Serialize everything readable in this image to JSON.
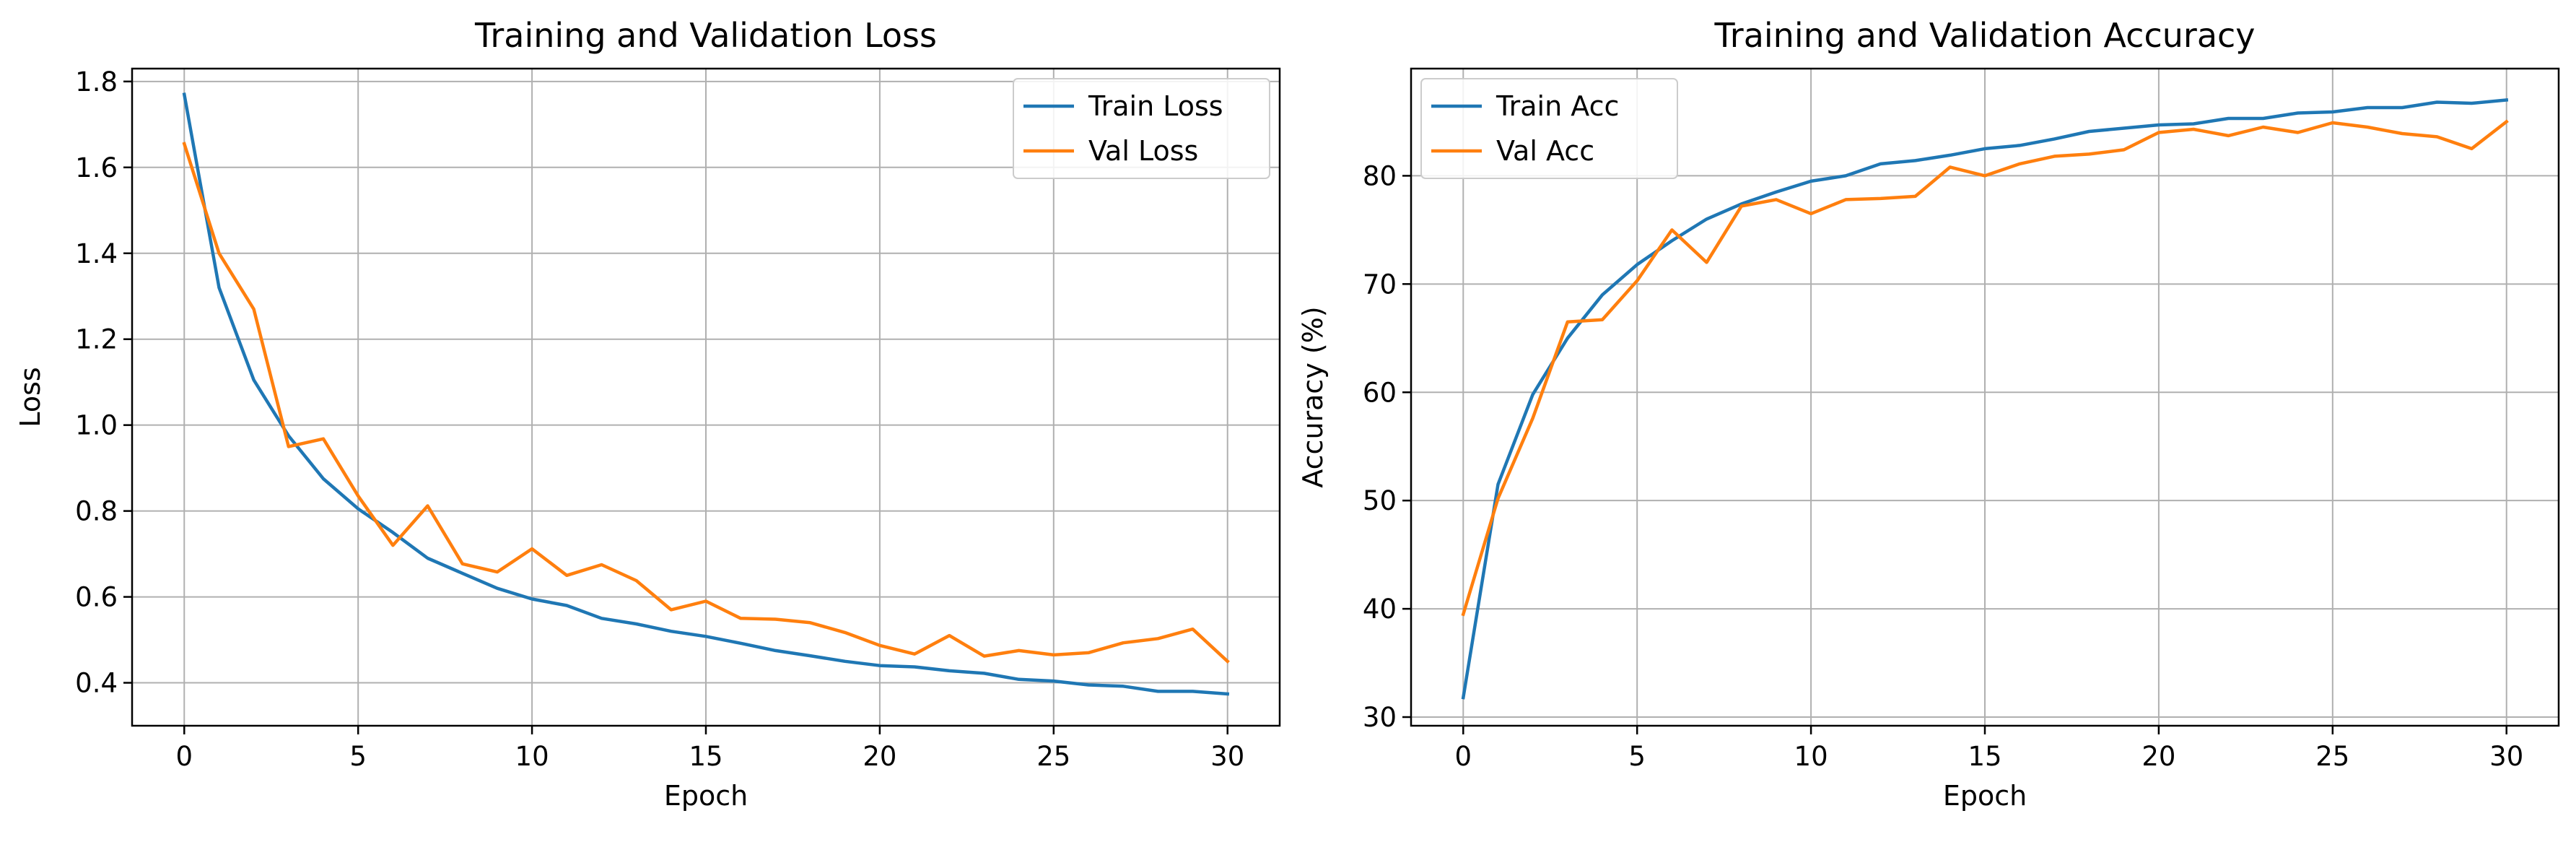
{
  "chart_data": [
    {
      "type": "line",
      "title": "Training and Validation Loss",
      "xlabel": "Epoch",
      "ylabel": "Loss",
      "xlim": [
        -1.5,
        31.5
      ],
      "ylim": [
        0.3,
        1.83
      ],
      "xticks": [
        0,
        5,
        10,
        15,
        20,
        25,
        30
      ],
      "yticks": [
        0.4,
        0.6,
        0.8,
        1.0,
        1.2,
        1.4,
        1.6,
        1.8
      ],
      "ytick_decimals": 1,
      "grid": true,
      "legend_position": "top-right",
      "x": [
        0,
        1,
        2,
        3,
        4,
        5,
        6,
        7,
        8,
        9,
        10,
        11,
        12,
        13,
        14,
        15,
        16,
        17,
        18,
        19,
        20,
        21,
        22,
        23,
        24,
        25,
        26,
        27,
        28,
        29,
        30
      ],
      "series": [
        {
          "name": "Train Loss",
          "color": "#1f77b4",
          "values": [
            1.77,
            1.32,
            1.105,
            0.975,
            0.875,
            0.805,
            0.75,
            0.69,
            0.655,
            0.62,
            0.595,
            0.58,
            0.55,
            0.537,
            0.52,
            0.508,
            0.492,
            0.475,
            0.463,
            0.45,
            0.44,
            0.437,
            0.428,
            0.422,
            0.408,
            0.404,
            0.395,
            0.392,
            0.38,
            0.38,
            0.374
          ]
        },
        {
          "name": "Val Loss",
          "color": "#ff7f0e",
          "values": [
            1.655,
            1.4,
            1.27,
            0.95,
            0.968,
            0.835,
            0.72,
            0.812,
            0.677,
            0.658,
            0.712,
            0.65,
            0.675,
            0.638,
            0.57,
            0.59,
            0.55,
            0.548,
            0.54,
            0.517,
            0.487,
            0.467,
            0.51,
            0.462,
            0.475,
            0.465,
            0.47,
            0.493,
            0.503,
            0.525,
            0.45
          ]
        }
      ]
    },
    {
      "type": "line",
      "title": "Training and Validation Accuracy",
      "xlabel": "Epoch",
      "ylabel": "Accuracy (%)",
      "xlim": [
        -1.5,
        31.5
      ],
      "ylim": [
        29.2,
        89.9
      ],
      "xticks": [
        0,
        5,
        10,
        15,
        20,
        25,
        30
      ],
      "yticks": [
        30,
        40,
        50,
        60,
        70,
        80
      ],
      "ytick_decimals": 0,
      "grid": true,
      "legend_position": "top-left",
      "x": [
        0,
        1,
        2,
        3,
        4,
        5,
        6,
        7,
        8,
        9,
        10,
        11,
        12,
        13,
        14,
        15,
        16,
        17,
        18,
        19,
        20,
        21,
        22,
        23,
        24,
        25,
        26,
        27,
        28,
        29,
        30
      ],
      "series": [
        {
          "name": "Train Acc",
          "color": "#1f77b4",
          "values": [
            31.8,
            51.5,
            59.8,
            65.0,
            69.0,
            71.8,
            74.0,
            76.0,
            77.4,
            78.5,
            79.5,
            80.0,
            81.1,
            81.4,
            81.9,
            82.5,
            82.8,
            83.4,
            84.1,
            84.4,
            84.7,
            84.8,
            85.3,
            85.3,
            85.8,
            85.9,
            86.3,
            86.3,
            86.8,
            86.7,
            87.0
          ]
        },
        {
          "name": "Val Acc",
          "color": "#ff7f0e",
          "values": [
            39.5,
            50.2,
            57.6,
            66.5,
            66.7,
            70.3,
            75.0,
            72.0,
            77.2,
            77.8,
            76.5,
            77.8,
            77.9,
            78.1,
            80.8,
            80.0,
            81.1,
            81.8,
            82.0,
            82.4,
            84.0,
            84.3,
            83.7,
            84.5,
            84.0,
            84.9,
            84.5,
            83.9,
            83.6,
            82.5,
            85.0
          ]
        }
      ]
    }
  ]
}
